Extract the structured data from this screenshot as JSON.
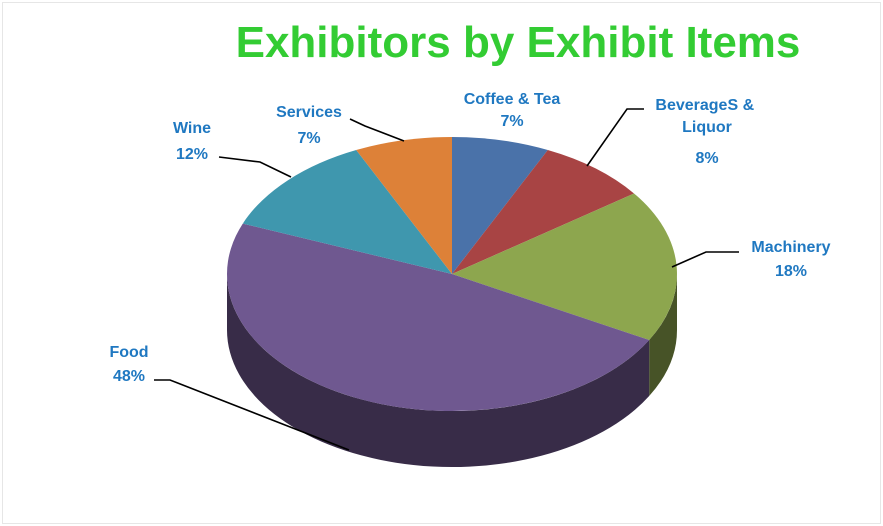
{
  "chart_data": {
    "type": "pie",
    "title": "Exhibitors by  Exhibit Items",
    "slices": [
      {
        "label": "Coffee & Tea",
        "percent_label": "7%",
        "value": 7,
        "color": "#4a72a9"
      },
      {
        "label": "BeverageS & Liquor",
        "percent_label": "8%",
        "value": 8,
        "color": "#a84444"
      },
      {
        "label": "Machinery",
        "percent_label": "18%",
        "value": 18,
        "color": "#8da64e"
      },
      {
        "label": "Food",
        "percent_label": "48%",
        "value": 48,
        "color": "#6f5890"
      },
      {
        "label": "Wine",
        "percent_label": "12%",
        "value": 12,
        "color": "#3f97ae"
      },
      {
        "label": "Services",
        "percent_label": "7%",
        "value": 7,
        "color": "#dd8138"
      }
    ],
    "label_color": "#1f78c1",
    "title_color": "#33cc33"
  }
}
